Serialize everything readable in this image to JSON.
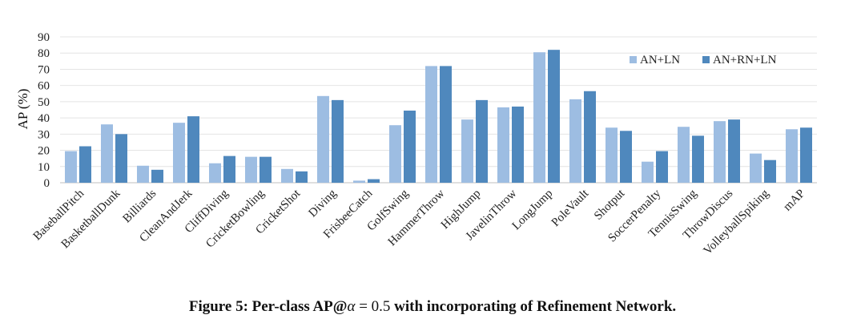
{
  "chart_data": {
    "type": "bar",
    "title": "",
    "xlabel": "",
    "ylabel": "AP (%)",
    "ylim": [
      0,
      90
    ],
    "yticks": [
      0,
      10,
      20,
      30,
      40,
      50,
      60,
      70,
      80,
      90
    ],
    "grid": true,
    "legend_position": "top-right",
    "categories": [
      "BaseballPitch",
      "BasketballDunk",
      "Billiards",
      "CleanAndJerk",
      "CliffDiving",
      "CricketBowling",
      "CricketShot",
      "Diving",
      "FrisbeeCatch",
      "GolfSwing",
      "HammerThrow",
      "HighJump",
      "JavelinThrow",
      "LongJump",
      "PoleVault",
      "Shotput",
      "SoccerPenalty",
      "TennisSwing",
      "ThrowDiscus",
      "VolleyballSpiking",
      "mAP"
    ],
    "series": [
      {
        "name": "AN+LN",
        "color": "#9dbde2",
        "values": [
          19.5,
          36,
          10.5,
          37,
          12,
          16,
          8.5,
          53.5,
          1.3,
          35.5,
          72,
          39,
          46.5,
          80.5,
          51.5,
          34,
          13,
          34.5,
          38,
          18,
          33
        ]
      },
      {
        "name": "AN+RN+LN",
        "color": "#4f88bd",
        "values": [
          22.5,
          30,
          8,
          41,
          16.5,
          16,
          7,
          51,
          2.2,
          44.5,
          72,
          51,
          47,
          82,
          56.5,
          32,
          19.5,
          29,
          39,
          14,
          34
        ]
      }
    ]
  },
  "caption": {
    "prefix": "Figure 5: Per-class AP@",
    "alpha": "α",
    "equals": " = ",
    "value": "0.5",
    "suffix": " with incorporating of Refinement Network."
  }
}
